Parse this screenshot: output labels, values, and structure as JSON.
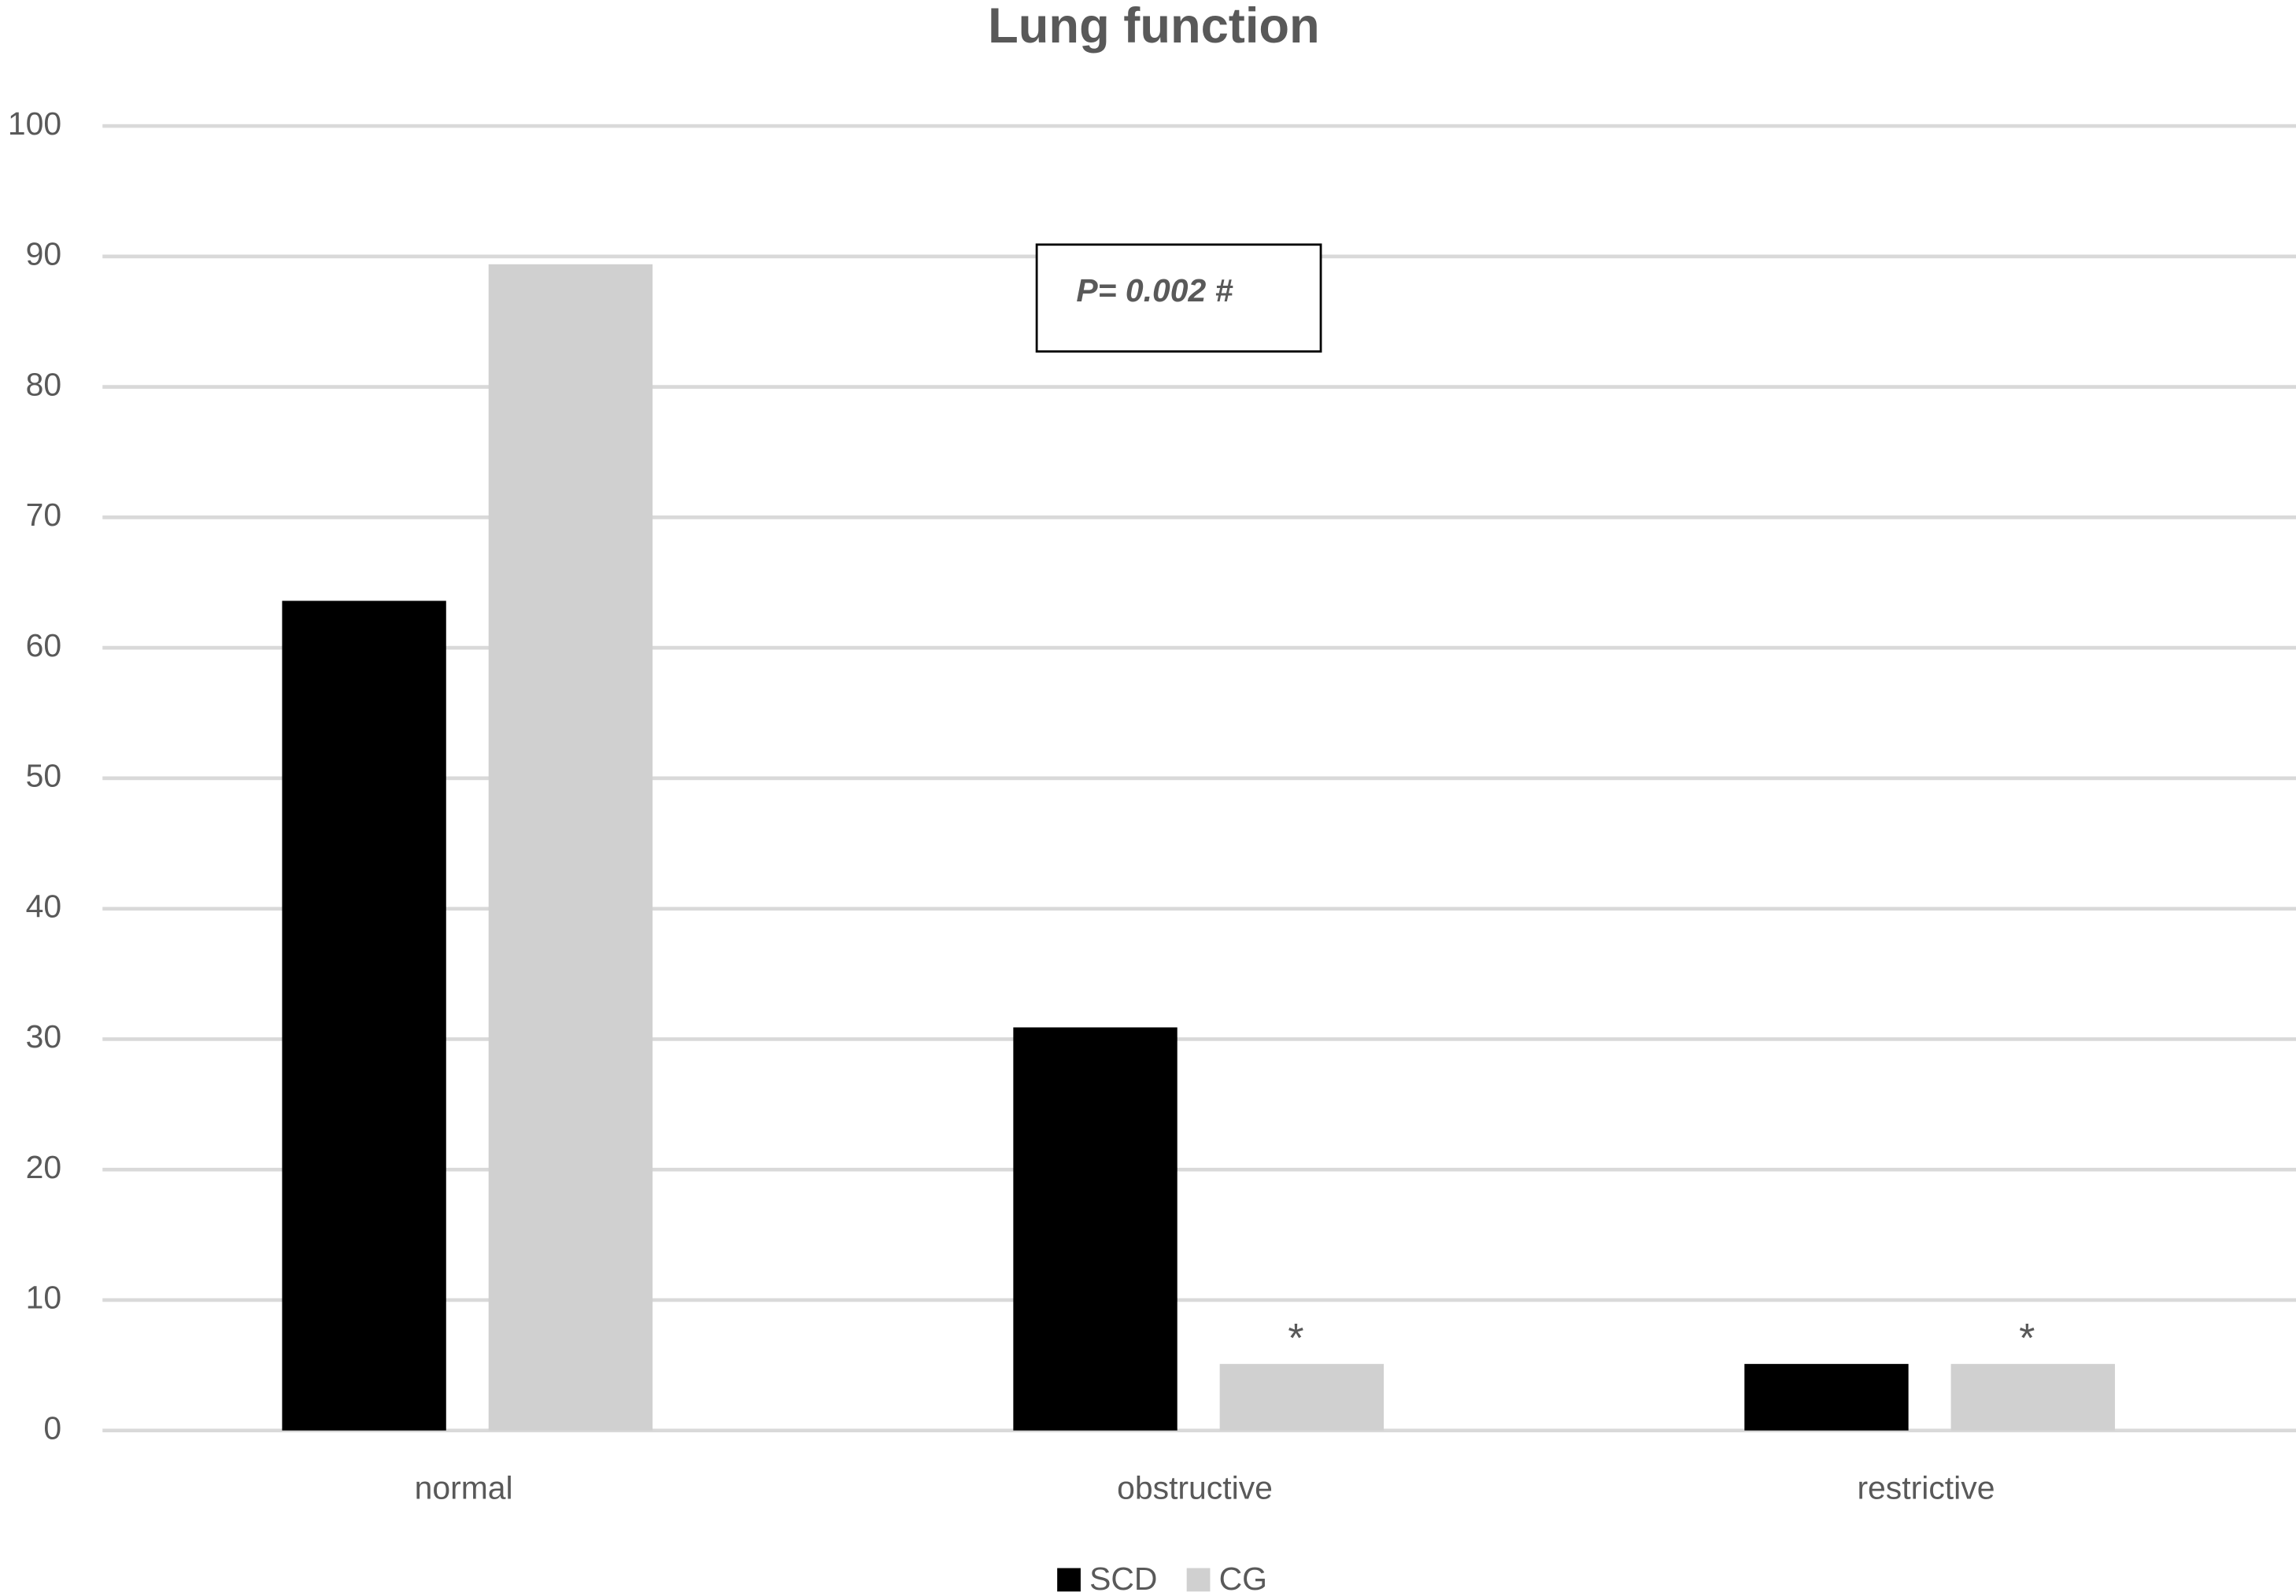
{
  "chart_data": {
    "type": "bar",
    "title": "Lung function",
    "categories": [
      "normal",
      "obstructive",
      "restrictive"
    ],
    "series": [
      {
        "name": "SCD",
        "color": "#000000",
        "values": [
          63.6,
          30.9,
          5.1
        ]
      },
      {
        "name": "CG",
        "color": "#d0d0d0",
        "values": [
          89.4,
          5.1,
          5.1
        ]
      }
    ],
    "ylim": [
      0,
      100
    ],
    "yticks": [
      0,
      10,
      20,
      30,
      40,
      50,
      60,
      70,
      80,
      90,
      100
    ],
    "grid": true,
    "legend": "bottom",
    "annotations": [
      "P= 0.002 #",
      "*",
      "*"
    ]
  }
}
